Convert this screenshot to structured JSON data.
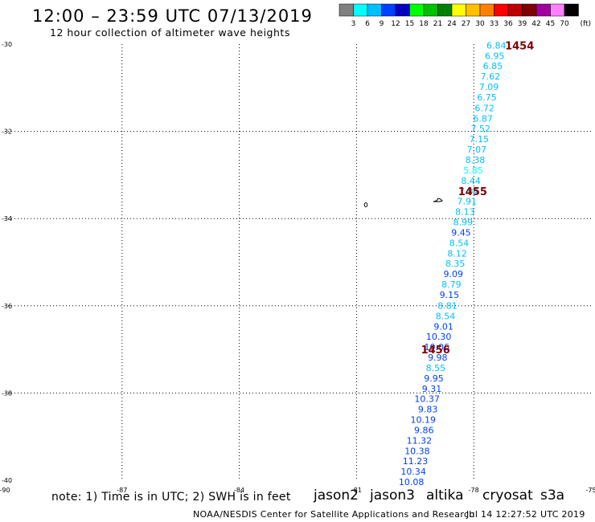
{
  "header": {
    "title": "12:00 – 23:59 UTC 07/13/2019",
    "subtitle": "12 hour collection of altimeter wave heights"
  },
  "colorbar": {
    "unit_label": "(ft)",
    "ticks": [
      "3",
      "6",
      "9",
      "12",
      "15",
      "18",
      "21",
      "24",
      "27",
      "30",
      "33",
      "36",
      "39",
      "42",
      "45",
      "70"
    ],
    "colors": [
      "#808080",
      "#00ffff",
      "#00c0ff",
      "#0040ff",
      "#0000c0",
      "#00ff00",
      "#00c000",
      "#008000",
      "#ffff00",
      "#ffc000",
      "#ff8000",
      "#ff0000",
      "#c00000",
      "#800000",
      "#a000a0",
      "#ff80ff",
      "#000000"
    ]
  },
  "chart_data": {
    "type": "scatter",
    "xlim": [
      -90,
      -75
    ],
    "ylim": [
      -40,
      -30
    ],
    "x_ticks": [
      "-90",
      "-87",
      "-84",
      "-81",
      "-78",
      "-75"
    ],
    "y_ticks": [
      "-30",
      "-32",
      "-34",
      "-36",
      "-38",
      "-40"
    ],
    "grid": true,
    "points": [
      {
        "lon": -77.48,
        "lat": -30.03,
        "swh": "6.84",
        "color": "#00c0ff"
      },
      {
        "lon": -77.52,
        "lat": -30.27,
        "swh": "6.95",
        "color": "#00c0ff"
      },
      {
        "lon": -77.57,
        "lat": -30.5,
        "swh": "6.85",
        "color": "#00c0ff"
      },
      {
        "lon": -77.63,
        "lat": -30.74,
        "swh": "7.62",
        "color": "#00c0ff"
      },
      {
        "lon": -77.67,
        "lat": -30.98,
        "swh": "7.09",
        "color": "#00c0ff"
      },
      {
        "lon": -77.72,
        "lat": -31.22,
        "swh": "6.75",
        "color": "#00c0ff"
      },
      {
        "lon": -77.78,
        "lat": -31.46,
        "swh": "6.72",
        "color": "#00c0ff"
      },
      {
        "lon": -77.82,
        "lat": -31.7,
        "swh": "6.87",
        "color": "#00c0ff"
      },
      {
        "lon": -77.88,
        "lat": -31.93,
        "swh": "7.52",
        "color": "#00c0ff"
      },
      {
        "lon": -77.92,
        "lat": -32.17,
        "swh": "7.15",
        "color": "#00c0ff"
      },
      {
        "lon": -77.98,
        "lat": -32.41,
        "swh": "7.07",
        "color": "#00c0ff"
      },
      {
        "lon": -78.02,
        "lat": -32.65,
        "swh": "8.38",
        "color": "#00c0ff"
      },
      {
        "lon": -78.07,
        "lat": -32.89,
        "swh": "5.85",
        "color": "#00ffff"
      },
      {
        "lon": -78.13,
        "lat": -33.13,
        "swh": "8.44",
        "color": "#00c0ff"
      },
      {
        "lon": -78.18,
        "lat": -33.37,
        "swh": "7.94",
        "color": "#00c0ff"
      },
      {
        "lon": -78.23,
        "lat": -33.6,
        "swh": "7.91",
        "color": "#00c0ff"
      },
      {
        "lon": -78.28,
        "lat": -33.84,
        "swh": "8.13",
        "color": "#00c0ff"
      },
      {
        "lon": -78.33,
        "lat": -34.08,
        "swh": "8.99",
        "color": "#00c0ff"
      },
      {
        "lon": -78.38,
        "lat": -34.32,
        "swh": "9.45",
        "color": "#0040ff"
      },
      {
        "lon": -78.43,
        "lat": -34.56,
        "swh": "8.54",
        "color": "#00c0ff"
      },
      {
        "lon": -78.48,
        "lat": -34.8,
        "swh": "8.12",
        "color": "#00c0ff"
      },
      {
        "lon": -78.53,
        "lat": -35.03,
        "swh": "8.35",
        "color": "#00c0ff"
      },
      {
        "lon": -78.58,
        "lat": -35.27,
        "swh": "9.09",
        "color": "#0040ff"
      },
      {
        "lon": -78.63,
        "lat": -35.51,
        "swh": "8.79",
        "color": "#00c0ff"
      },
      {
        "lon": -78.68,
        "lat": -35.75,
        "swh": "9.15",
        "color": "#0040ff"
      },
      {
        "lon": -78.73,
        "lat": -35.99,
        "swh": "8.81",
        "color": "#00c0ff"
      },
      {
        "lon": -78.78,
        "lat": -36.23,
        "swh": "8.54",
        "color": "#00c0ff"
      },
      {
        "lon": -78.83,
        "lat": -36.47,
        "swh": "9.01",
        "color": "#0040ff"
      },
      {
        "lon": -78.88,
        "lat": -36.7,
        "swh": "10.30",
        "color": "#0040ff"
      },
      {
        "lon": -78.93,
        "lat": -36.94,
        "swh": "10.06",
        "color": "#0040ff"
      },
      {
        "lon": -78.98,
        "lat": -37.18,
        "swh": "9.98",
        "color": "#0040ff"
      },
      {
        "lon": -79.03,
        "lat": -37.42,
        "swh": "8.55",
        "color": "#00c0ff"
      },
      {
        "lon": -79.08,
        "lat": -37.66,
        "swh": "9.95",
        "color": "#0040ff"
      },
      {
        "lon": -79.13,
        "lat": -37.9,
        "swh": "9.31",
        "color": "#0040ff"
      },
      {
        "lon": -79.18,
        "lat": -38.13,
        "swh": "10.37",
        "color": "#0040ff"
      },
      {
        "lon": -79.23,
        "lat": -38.37,
        "swh": "9.83",
        "color": "#0040ff"
      },
      {
        "lon": -79.28,
        "lat": -38.61,
        "swh": "10.19",
        "color": "#0040ff"
      },
      {
        "lon": -79.33,
        "lat": -38.85,
        "swh": "9.86",
        "color": "#0040ff"
      },
      {
        "lon": -79.38,
        "lat": -39.09,
        "swh": "11.32",
        "color": "#0040ff"
      },
      {
        "lon": -79.43,
        "lat": -39.33,
        "swh": "10.38",
        "color": "#0040ff"
      },
      {
        "lon": -79.48,
        "lat": -39.56,
        "swh": "11.23",
        "color": "#0040ff"
      },
      {
        "lon": -79.53,
        "lat": -39.8,
        "swh": "10.34",
        "color": "#0040ff"
      },
      {
        "lon": -79.58,
        "lat": -40.04,
        "swh": "10.08",
        "color": "#0040ff"
      }
    ],
    "time_labels": [
      {
        "lon": -77.2,
        "lat": -30.03,
        "text": "1454",
        "color": "#800000"
      },
      {
        "lon": -78.4,
        "lat": -33.37,
        "text": "1455",
        "color": "#800000"
      },
      {
        "lon": -79.35,
        "lat": -37.0,
        "text": "1456",
        "color": "#800000"
      }
    ]
  },
  "footer": {
    "note": "note:  1) Time is in UTC;  2) SWH is in feet",
    "satellites": [
      {
        "name": "jason2",
        "color": "#0000e0"
      },
      {
        "name": "jason3",
        "color": "#00a000"
      },
      {
        "name": "altika",
        "color": "#ff8000"
      },
      {
        "name": "cryosat",
        "color": "#e00000"
      },
      {
        "name": "s3a",
        "color": "#800000"
      }
    ],
    "credit": "NOAA/NESDIS Center for Satellite Applications and Research",
    "timestamp": "Jul 14 12:27:52 UTC 2019"
  }
}
